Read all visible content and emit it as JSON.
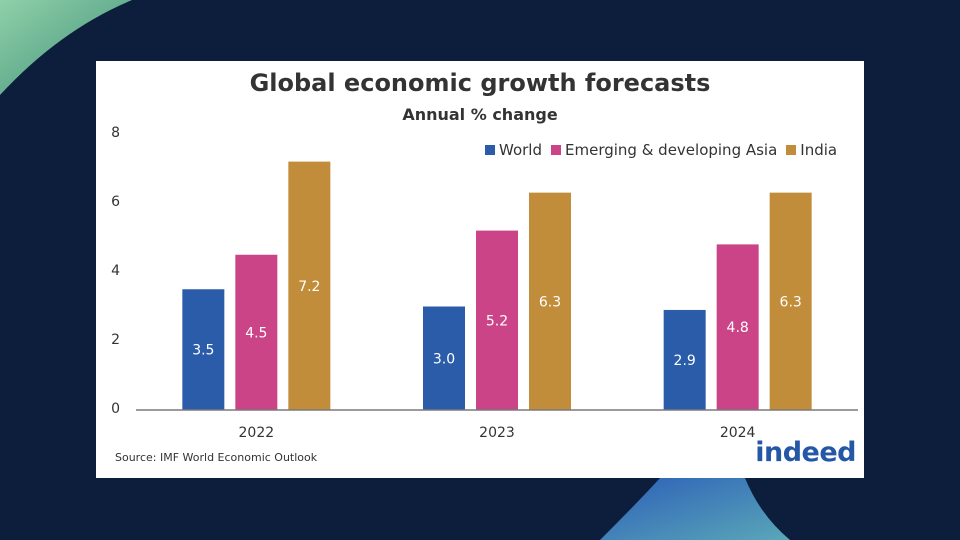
{
  "chart_data": {
    "type": "bar",
    "title": "Global economic growth forecasts",
    "subtitle": "Annual % change",
    "categories": [
      "2022",
      "2023",
      "2024"
    ],
    "series": [
      {
        "name": "World",
        "color": "#2a5caa",
        "values": [
          3.5,
          3.0,
          2.9
        ],
        "labels": [
          "3.5",
          "3.0",
          "2.9"
        ]
      },
      {
        "name": "Emerging & developing Asia",
        "color": "#cc4488",
        "values": [
          4.5,
          5.2,
          4.8
        ],
        "labels": [
          "4.5",
          "5.2",
          "4.8"
        ]
      },
      {
        "name": "India",
        "color": "#c28d3a",
        "values": [
          7.2,
          6.3,
          6.3
        ],
        "labels": [
          "7.2",
          "6.3",
          "6.3"
        ]
      }
    ],
    "yticks": [
      "0",
      "2",
      "4",
      "6",
      "8"
    ],
    "ylim": [
      0,
      8
    ],
    "grid": false,
    "legend": "top-right"
  },
  "source": "Source: IMF World Economic Outlook",
  "logo_text": "indeed"
}
